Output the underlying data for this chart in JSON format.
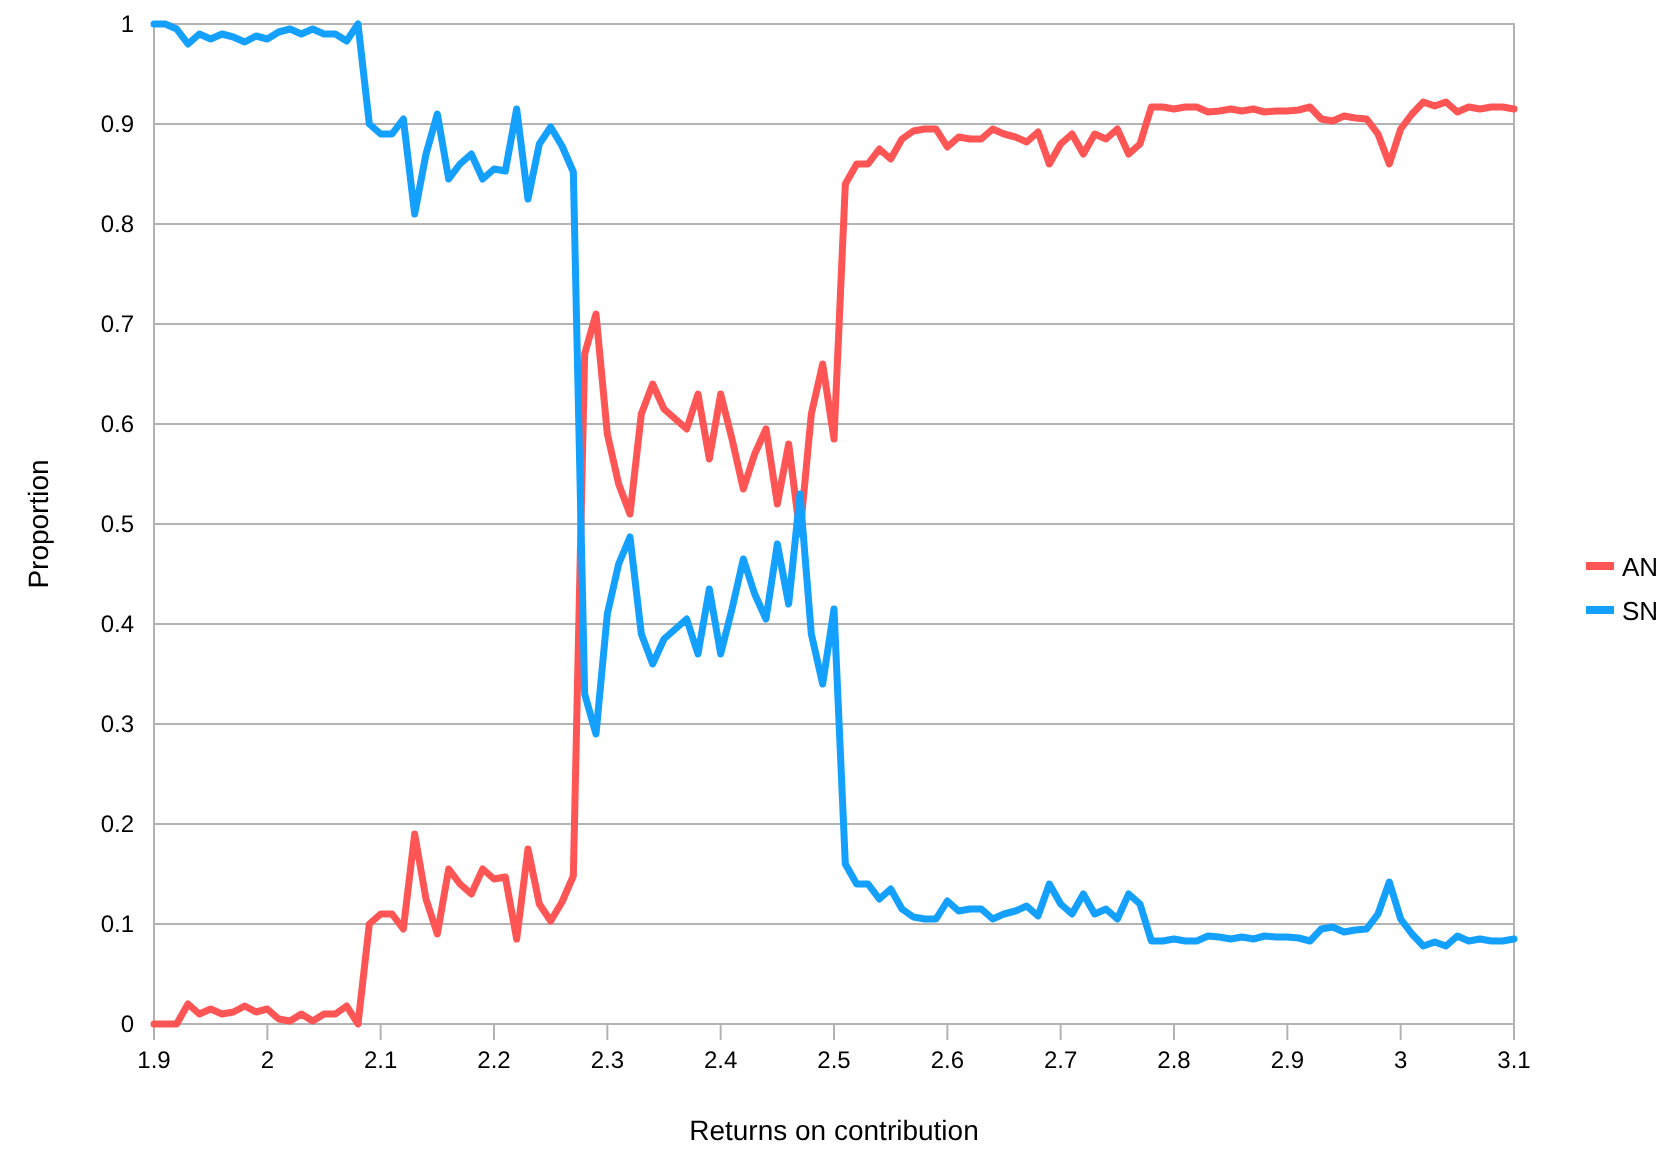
{
  "chart_data": {
    "type": "line",
    "xlabel": "Returns on contribution",
    "ylabel": "Proportion",
    "x": [
      1.9,
      1.91,
      1.92,
      1.93,
      1.94,
      1.95,
      1.96,
      1.97,
      1.98,
      1.99,
      2,
      2.01,
      2.02,
      2.03,
      2.04,
      2.05,
      2.06,
      2.07,
      2.08,
      2.09,
      2.1,
      2.11,
      2.12,
      2.13,
      2.14,
      2.15,
      2.16,
      2.17,
      2.18,
      2.19,
      2.2,
      2.21,
      2.22,
      2.23,
      2.24,
      2.25,
      2.26,
      2.27,
      2.28,
      2.29,
      2.3,
      2.31,
      2.32,
      2.33,
      2.34,
      2.35,
      2.36,
      2.37,
      2.38,
      2.39,
      2.4,
      2.41,
      2.42,
      2.43,
      2.44,
      2.45,
      2.46,
      2.47,
      2.48,
      2.49,
      2.5,
      2.51,
      2.52,
      2.53,
      2.54,
      2.55,
      2.56,
      2.57,
      2.58,
      2.59,
      2.6,
      2.61,
      2.62,
      2.63,
      2.64,
      2.65,
      2.66,
      2.67,
      2.68,
      2.69,
      2.7,
      2.71,
      2.72,
      2.73,
      2.74,
      2.75,
      2.76,
      2.77,
      2.78,
      2.79,
      2.8,
      2.81,
      2.82,
      2.83,
      2.84,
      2.85,
      2.86,
      2.87,
      2.88,
      2.89,
      2.9,
      2.91,
      2.92,
      2.93,
      2.94,
      2.95,
      2.96,
      2.97,
      2.98,
      2.99,
      3,
      3.01,
      3.02,
      3.03,
      3.04,
      3.05,
      3.06,
      3.07,
      3.08,
      3.09,
      3.1
    ],
    "series": [
      {
        "name": "AN",
        "color": "#ff5555",
        "values": [
          0,
          0,
          0,
          0.02,
          0.01,
          0.015,
          0.01,
          0.012,
          0.018,
          0.012,
          0.015,
          0.005,
          0.003,
          0.01,
          0.003,
          0.01,
          0.01,
          0.018,
          0,
          0.1,
          0.11,
          0.11,
          0.095,
          0.19,
          0.125,
          0.09,
          0.155,
          0.14,
          0.13,
          0.155,
          0.145,
          0.147,
          0.085,
          0.175,
          0.12,
          0.103,
          0.122,
          0.148,
          0.67,
          0.71,
          0.59,
          0.54,
          0.51,
          0.61,
          0.64,
          0.615,
          0.605,
          0.595,
          0.63,
          0.565,
          0.63,
          0.585,
          0.535,
          0.57,
          0.595,
          0.52,
          0.58,
          0.49,
          0.61,
          0.66,
          0.585,
          0.84,
          0.86,
          0.86,
          0.875,
          0.865,
          0.885,
          0.893,
          0.895,
          0.895,
          0.877,
          0.887,
          0.885,
          0.885,
          0.895,
          0.89,
          0.887,
          0.882,
          0.892,
          0.86,
          0.88,
          0.89,
          0.87,
          0.89,
          0.885,
          0.895,
          0.87,
          0.88,
          0.917,
          0.917,
          0.915,
          0.917,
          0.917,
          0.912,
          0.913,
          0.915,
          0.913,
          0.915,
          0.912,
          0.913,
          0.913,
          0.914,
          0.917,
          0.905,
          0.903,
          0.908,
          0.906,
          0.905,
          0.89,
          0.86,
          0.895,
          0.91,
          0.922,
          0.918,
          0.922,
          0.912,
          0.917,
          0.915,
          0.917,
          0.917,
          0.915
        ]
      },
      {
        "name": "SN",
        "color": "#14a0ff",
        "values": [
          1,
          1,
          0.995,
          0.98,
          0.99,
          0.985,
          0.99,
          0.987,
          0.982,
          0.988,
          0.985,
          0.992,
          0.995,
          0.99,
          0.995,
          0.99,
          0.99,
          0.983,
          1,
          0.9,
          0.89,
          0.89,
          0.905,
          0.81,
          0.87,
          0.91,
          0.845,
          0.86,
          0.87,
          0.845,
          0.855,
          0.853,
          0.915,
          0.825,
          0.88,
          0.897,
          0.878,
          0.852,
          0.33,
          0.29,
          0.41,
          0.46,
          0.487,
          0.39,
          0.36,
          0.385,
          0.395,
          0.405,
          0.37,
          0.435,
          0.37,
          0.415,
          0.465,
          0.43,
          0.405,
          0.48,
          0.42,
          0.53,
          0.39,
          0.34,
          0.415,
          0.16,
          0.14,
          0.14,
          0.125,
          0.135,
          0.115,
          0.107,
          0.105,
          0.105,
          0.123,
          0.113,
          0.115,
          0.115,
          0.105,
          0.11,
          0.113,
          0.118,
          0.108,
          0.14,
          0.12,
          0.11,
          0.13,
          0.11,
          0.115,
          0.105,
          0.13,
          0.12,
          0.083,
          0.083,
          0.085,
          0.083,
          0.083,
          0.088,
          0.087,
          0.085,
          0.087,
          0.085,
          0.088,
          0.087,
          0.087,
          0.086,
          0.083,
          0.095,
          0.097,
          0.092,
          0.094,
          0.095,
          0.11,
          0.142,
          0.105,
          0.09,
          0.078,
          0.082,
          0.078,
          0.088,
          0.083,
          0.085,
          0.083,
          0.083,
          0.085
        ]
      }
    ],
    "xlim": [
      1.9,
      3.1
    ],
    "xticks": [
      1.9,
      2,
      2.1,
      2.2,
      2.3,
      2.4,
      2.5,
      2.6,
      2.7,
      2.8,
      2.9,
      3,
      3.1
    ],
    "ylim": [
      0,
      1
    ],
    "yticks": [
      0,
      0.1,
      0.2,
      0.3,
      0.4,
      0.5,
      0.6,
      0.7,
      0.8,
      0.9,
      1
    ],
    "grid": "y",
    "legend": "right",
    "marker": "none",
    "line_style": "solid"
  }
}
